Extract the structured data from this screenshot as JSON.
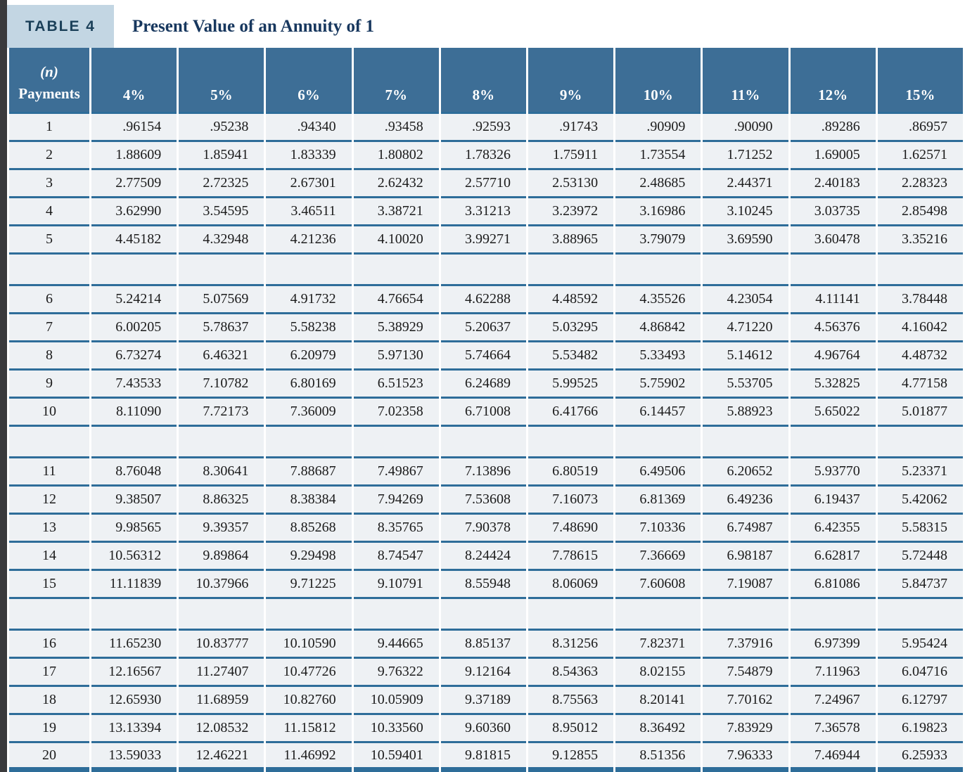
{
  "table": {
    "tag": "TABLE 4",
    "title": "Present Value of an Annuity of 1",
    "payments_header_line1": "(n)",
    "payments_header_line2": "Payments",
    "columns": [
      "4%",
      "5%",
      "6%",
      "7%",
      "8%",
      "9%",
      "10%",
      "11%",
      "12%",
      "15%"
    ],
    "groups": [
      {
        "rows": [
          {
            "n": "1",
            "values": [
              ".96154",
              ".95238",
              ".94340",
              ".93458",
              ".92593",
              ".91743",
              ".90909",
              ".90090",
              ".89286",
              ".86957"
            ]
          },
          {
            "n": "2",
            "values": [
              "1.88609",
              "1.85941",
              "1.83339",
              "1.80802",
              "1.78326",
              "1.75911",
              "1.73554",
              "1.71252",
              "1.69005",
              "1.62571"
            ]
          },
          {
            "n": "3",
            "values": [
              "2.77509",
              "2.72325",
              "2.67301",
              "2.62432",
              "2.57710",
              "2.53130",
              "2.48685",
              "2.44371",
              "2.40183",
              "2.28323"
            ]
          },
          {
            "n": "4",
            "values": [
              "3.62990",
              "3.54595",
              "3.46511",
              "3.38721",
              "3.31213",
              "3.23972",
              "3.16986",
              "3.10245",
              "3.03735",
              "2.85498"
            ]
          },
          {
            "n": "5",
            "values": [
              "4.45182",
              "4.32948",
              "4.21236",
              "4.10020",
              "3.99271",
              "3.88965",
              "3.79079",
              "3.69590",
              "3.60478",
              "3.35216"
            ]
          }
        ]
      },
      {
        "rows": [
          {
            "n": "6",
            "values": [
              "5.24214",
              "5.07569",
              "4.91732",
              "4.76654",
              "4.62288",
              "4.48592",
              "4.35526",
              "4.23054",
              "4.11141",
              "3.78448"
            ]
          },
          {
            "n": "7",
            "values": [
              "6.00205",
              "5.78637",
              "5.58238",
              "5.38929",
              "5.20637",
              "5.03295",
              "4.86842",
              "4.71220",
              "4.56376",
              "4.16042"
            ]
          },
          {
            "n": "8",
            "values": [
              "6.73274",
              "6.46321",
              "6.20979",
              "5.97130",
              "5.74664",
              "5.53482",
              "5.33493",
              "5.14612",
              "4.96764",
              "4.48732"
            ]
          },
          {
            "n": "9",
            "values": [
              "7.43533",
              "7.10782",
              "6.80169",
              "6.51523",
              "6.24689",
              "5.99525",
              "5.75902",
              "5.53705",
              "5.32825",
              "4.77158"
            ]
          },
          {
            "n": "10",
            "values": [
              "8.11090",
              "7.72173",
              "7.36009",
              "7.02358",
              "6.71008",
              "6.41766",
              "6.14457",
              "5.88923",
              "5.65022",
              "5.01877"
            ]
          }
        ]
      },
      {
        "rows": [
          {
            "n": "11",
            "values": [
              "8.76048",
              "8.30641",
              "7.88687",
              "7.49867",
              "7.13896",
              "6.80519",
              "6.49506",
              "6.20652",
              "5.93770",
              "5.23371"
            ]
          },
          {
            "n": "12",
            "values": [
              "9.38507",
              "8.86325",
              "8.38384",
              "7.94269",
              "7.53608",
              "7.16073",
              "6.81369",
              "6.49236",
              "6.19437",
              "5.42062"
            ]
          },
          {
            "n": "13",
            "values": [
              "9.98565",
              "9.39357",
              "8.85268",
              "8.35765",
              "7.90378",
              "7.48690",
              "7.10336",
              "6.74987",
              "6.42355",
              "5.58315"
            ]
          },
          {
            "n": "14",
            "values": [
              "10.56312",
              "9.89864",
              "9.29498",
              "8.74547",
              "8.24424",
              "7.78615",
              "7.36669",
              "6.98187",
              "6.62817",
              "5.72448"
            ]
          },
          {
            "n": "15",
            "values": [
              "11.11839",
              "10.37966",
              "9.71225",
              "9.10791",
              "8.55948",
              "8.06069",
              "7.60608",
              "7.19087",
              "6.81086",
              "5.84737"
            ]
          }
        ]
      },
      {
        "rows": [
          {
            "n": "16",
            "values": [
              "11.65230",
              "10.83777",
              "10.10590",
              "9.44665",
              "8.85137",
              "8.31256",
              "7.82371",
              "7.37916",
              "6.97399",
              "5.95424"
            ]
          },
          {
            "n": "17",
            "values": [
              "12.16567",
              "11.27407",
              "10.47726",
              "9.76322",
              "9.12164",
              "8.54363",
              "8.02155",
              "7.54879",
              "7.11963",
              "6.04716"
            ]
          },
          {
            "n": "18",
            "values": [
              "12.65930",
              "11.68959",
              "10.82760",
              "10.05909",
              "9.37189",
              "8.75563",
              "8.20141",
              "7.70162",
              "7.24967",
              "6.12797"
            ]
          },
          {
            "n": "19",
            "values": [
              "13.13394",
              "12.08532",
              "11.15812",
              "10.33560",
              "9.60360",
              "8.95012",
              "8.36492",
              "7.83929",
              "7.36578",
              "6.19823"
            ]
          },
          {
            "n": "20",
            "values": [
              "13.59033",
              "12.46221",
              "11.46992",
              "10.59401",
              "9.81815",
              "9.12855",
              "8.51356",
              "7.96333",
              "7.46944",
              "6.25933"
            ]
          }
        ]
      }
    ]
  },
  "colors": {
    "header_band": "#3d6e96",
    "rule_blue": "#2e6d99",
    "row_background": "#eef1f4",
    "tag_box_background": "#c3d6e3",
    "title_text": "#17375e",
    "left_strip": "#3a3a3c"
  }
}
